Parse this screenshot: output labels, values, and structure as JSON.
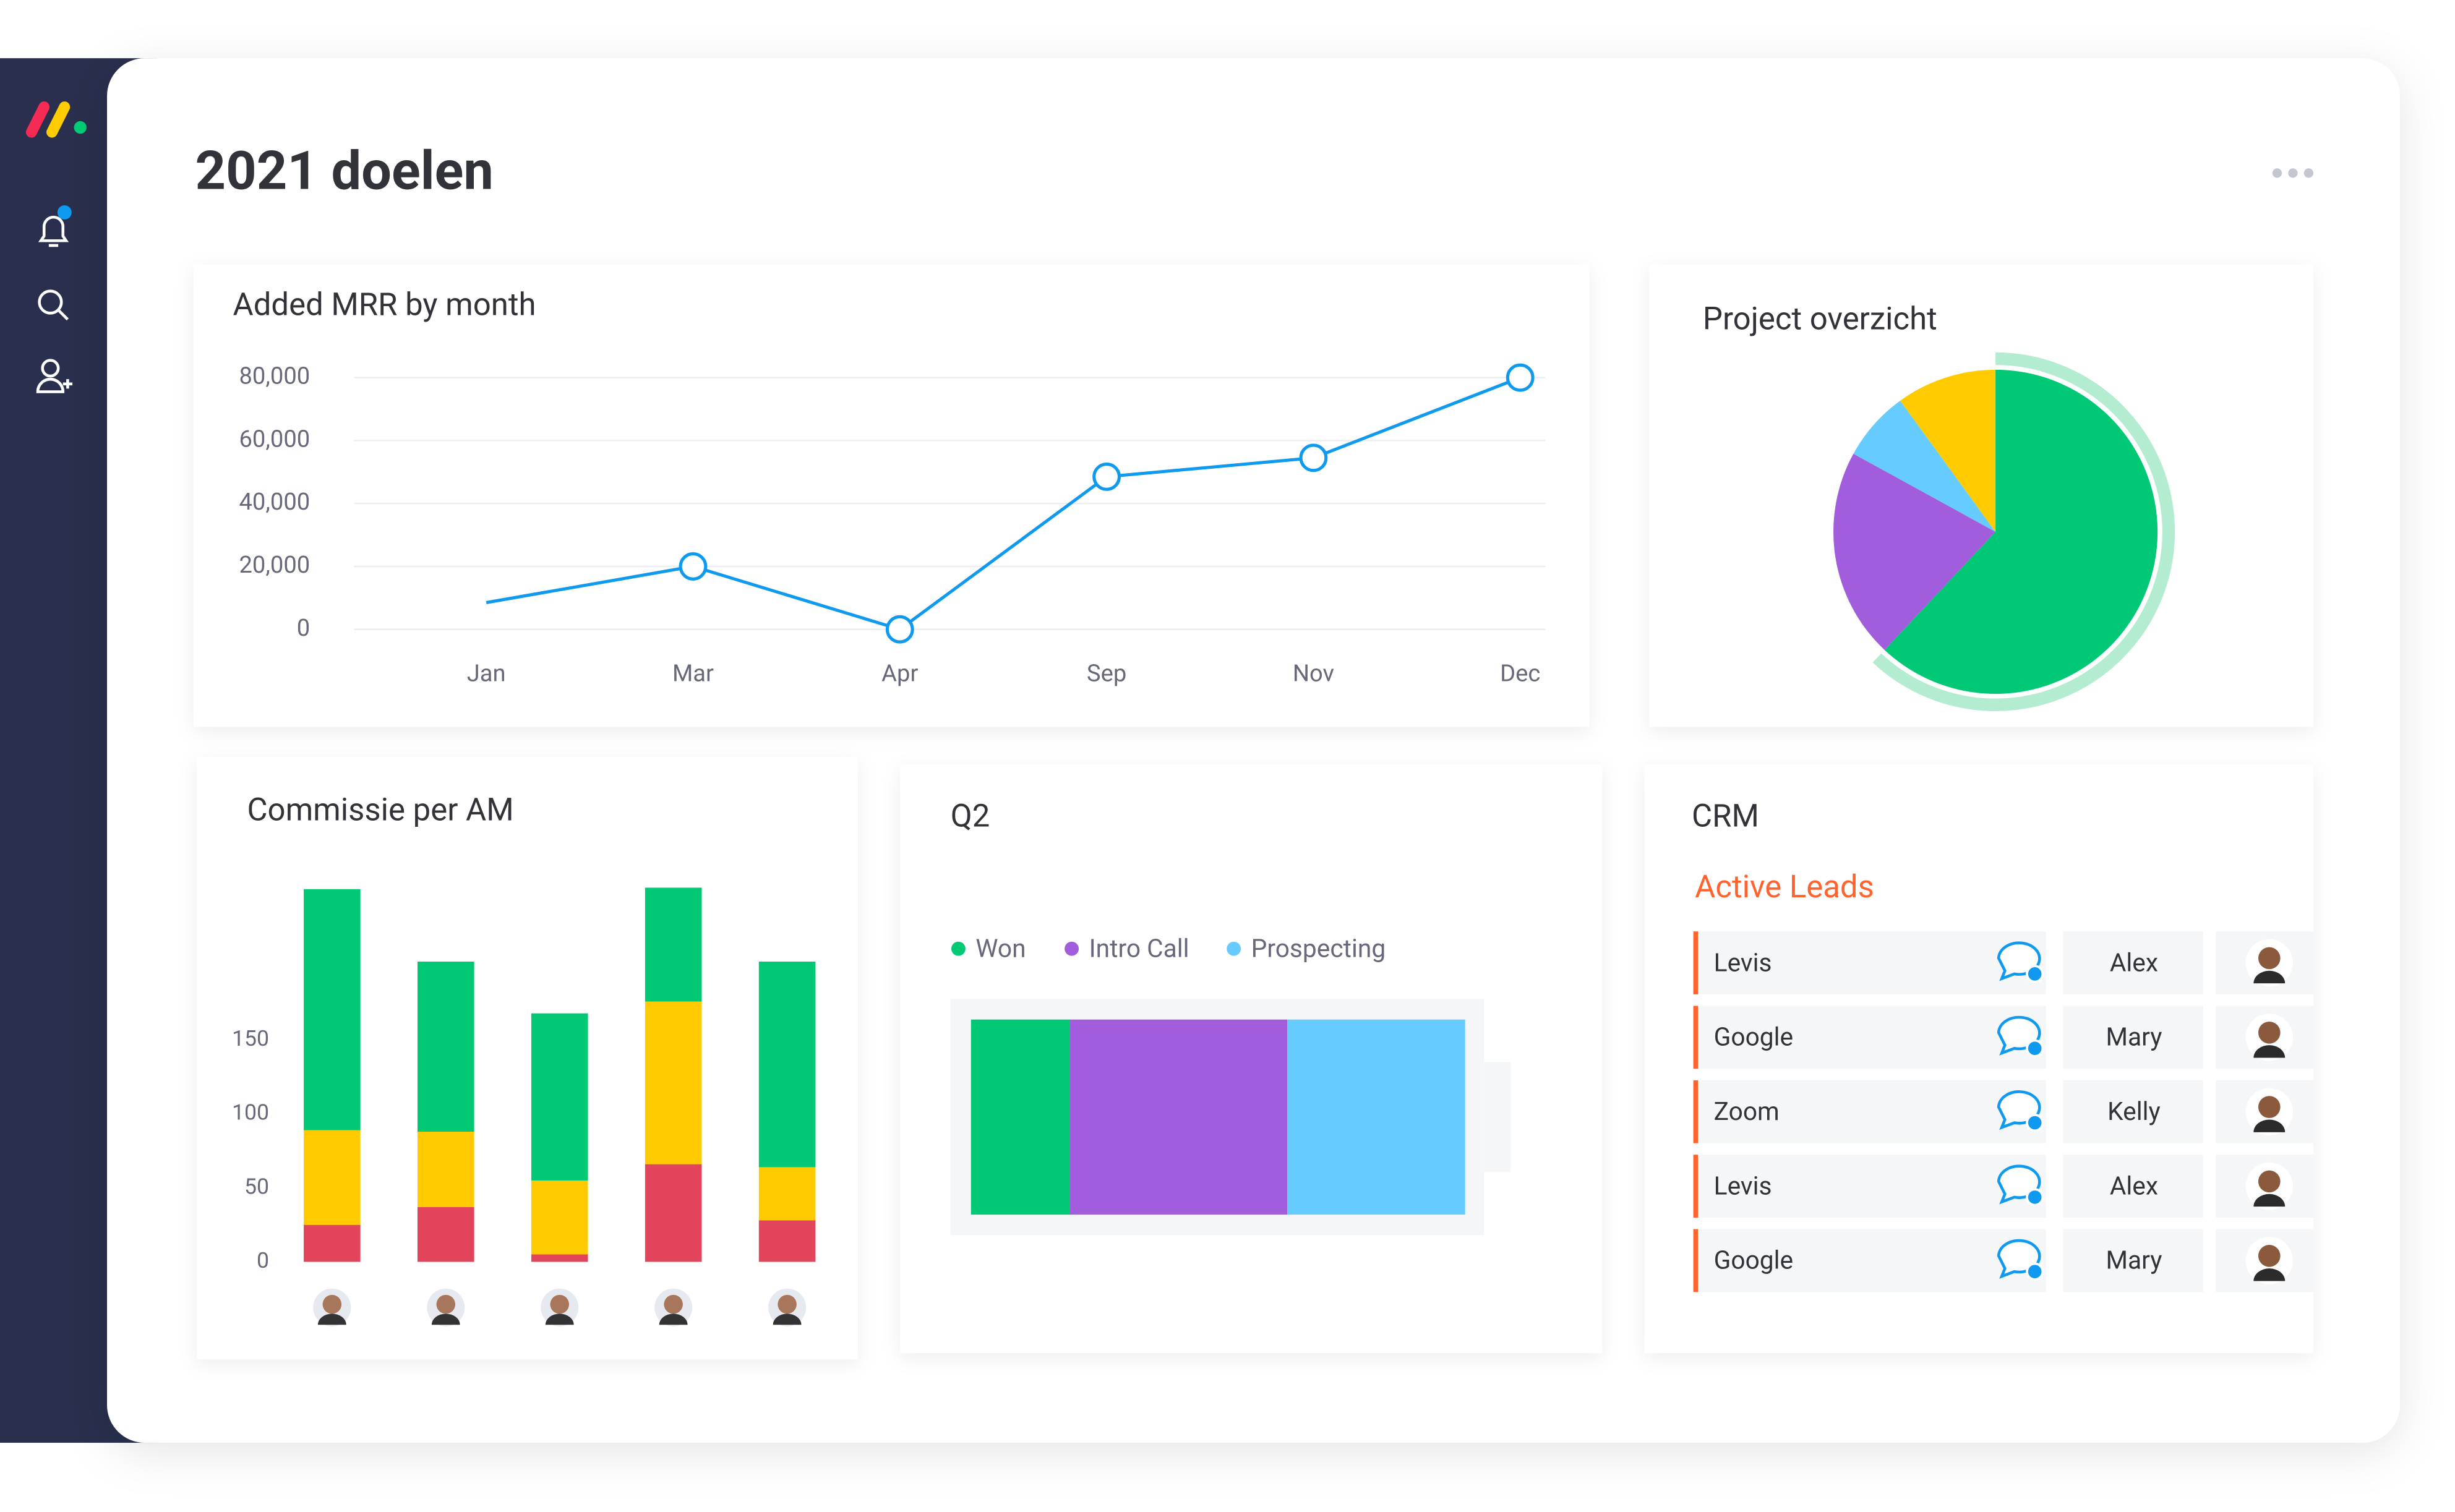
{
  "title": "2021 doelen",
  "chart_data": [
    {
      "type": "line",
      "title": "Added MRR by month",
      "categories": [
        "Jan",
        "Mar",
        "Apr",
        "Sep",
        "Nov",
        "Dec"
      ],
      "values": [
        8500,
        20000,
        0,
        48500,
        54500,
        80000
      ],
      "color": "#0f9af0",
      "ylim": [
        0,
        80000
      ],
      "yticks": [
        0,
        {
          "value": 20000,
          "label": "20,000"
        },
        {
          "value": 40000,
          "label": "40,000"
        },
        {
          "value": 60000,
          "label": "60,000"
        },
        {
          "value": 80000,
          "label": "80,000"
        }
      ],
      "grid": true
    },
    {
      "type": "pie",
      "title": "Project overzicht",
      "values": [
        62,
        21,
        7,
        10
      ],
      "colors": [
        "#00c875",
        "#a25ddc",
        "#66ccff",
        "#ffcb00"
      ]
    },
    {
      "type": "stacked_bar",
      "title": "Commissie per AM",
      "categories": [
        null,
        null,
        null,
        null,
        null
      ],
      "series": [
        {
          "color": "#e2445c",
          "values": [
            25,
            37,
            5,
            66,
            28
          ]
        },
        {
          "color": "#ffcb00",
          "values": [
            64,
            51,
            50,
            110,
            36
          ]
        },
        {
          "color": "#00c875",
          "values": [
            163,
            115,
            113,
            77,
            139
          ]
        }
      ],
      "ylim": [
        0,
        260
      ],
      "yticks": [
        0,
        50,
        100,
        150
      ]
    },
    {
      "type": "stacked_hbar",
      "title": "Q2",
      "series": [
        {
          "name": "Won",
          "color": "#00c875",
          "values": [
            20
          ]
        },
        {
          "name": "Intro Call",
          "color": "#a25ddc",
          "values": [
            44
          ]
        },
        {
          "name": "Prospecting",
          "color": "#66ccff",
          "values": [
            36
          ]
        }
      ],
      "xlim": [
        0,
        100
      ]
    }
  ],
  "crm": {
    "title": "CRM",
    "subtitle": "Active Leads",
    "rows": [
      [
        "Levis",
        "Alex"
      ],
      [
        "Google",
        "Mary"
      ],
      [
        "Zoom",
        "Kelly"
      ],
      [
        "Levis",
        "Alex"
      ],
      [
        "Google",
        "Mary"
      ]
    ]
  }
}
